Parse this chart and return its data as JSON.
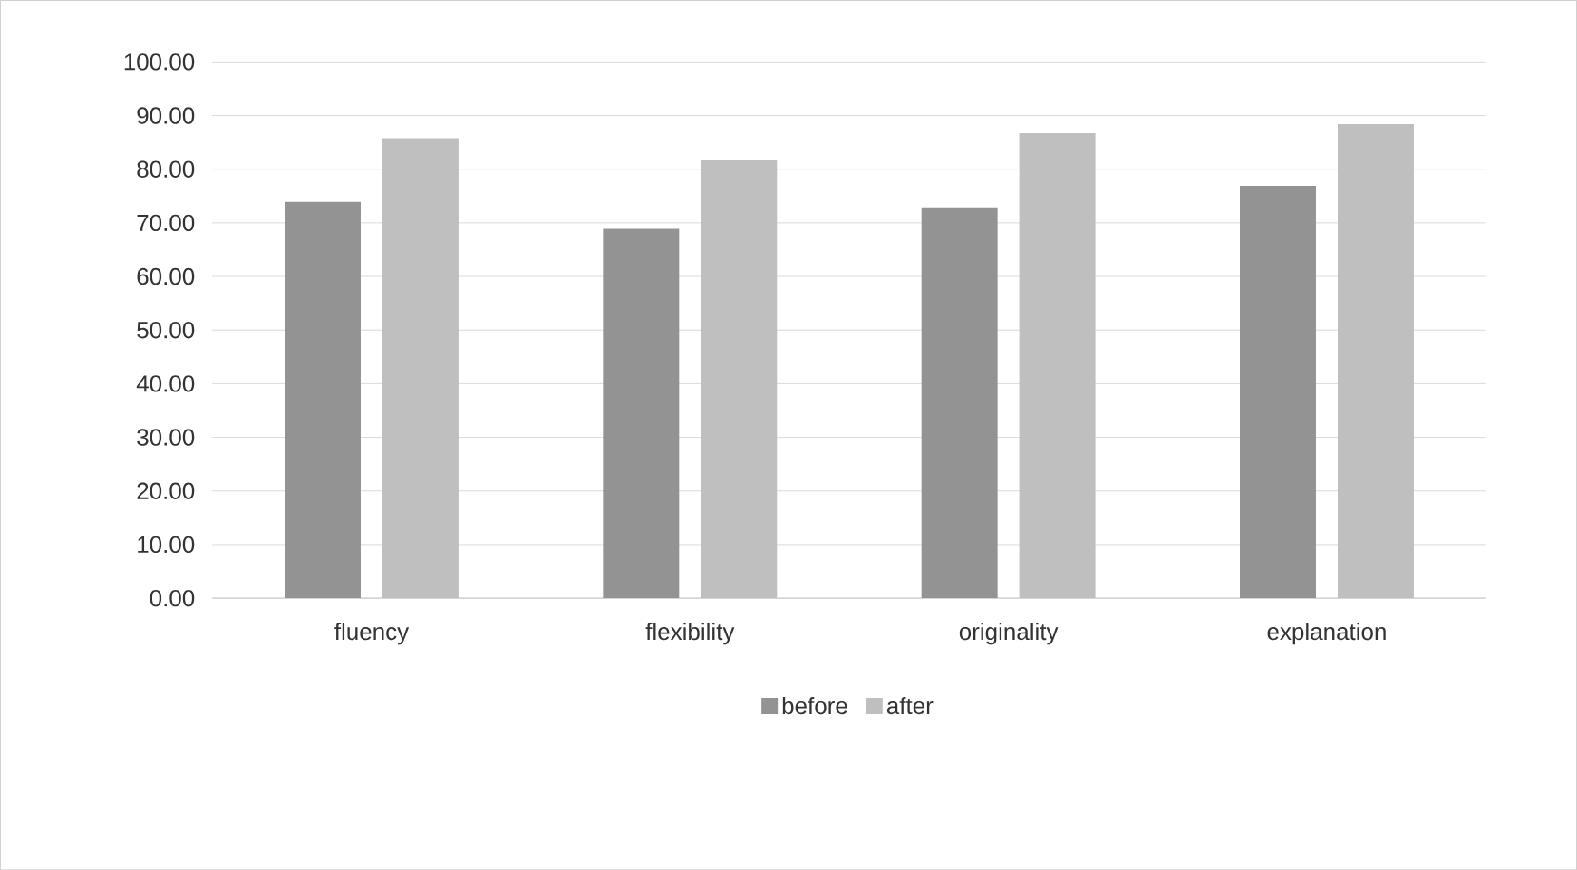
{
  "chart_data": {
    "type": "bar",
    "categories": [
      "fluency",
      "flexibility",
      "originality",
      "explanation"
    ],
    "series": [
      {
        "name": "before",
        "color": "#939393",
        "values": [
          73.9,
          68.9,
          72.9,
          76.9
        ]
      },
      {
        "name": "after",
        "color": "#bfbfbf",
        "values": [
          85.8,
          81.8,
          86.7,
          88.4
        ]
      }
    ],
    "ylim": [
      0,
      100
    ],
    "yticks": [
      {
        "value": 0,
        "label": "0.00"
      },
      {
        "value": 10,
        "label": "10.00"
      },
      {
        "value": 20,
        "label": "20.00"
      },
      {
        "value": 30,
        "label": "30.00"
      },
      {
        "value": 40,
        "label": "40.00"
      },
      {
        "value": 50,
        "label": "50.00"
      },
      {
        "value": 60,
        "label": "60.00"
      },
      {
        "value": 70,
        "label": "70.00"
      },
      {
        "value": 80,
        "label": "80.00"
      },
      {
        "value": 90,
        "label": "90.00"
      },
      {
        "value": 100,
        "label": "100.00"
      }
    ],
    "grid": "y",
    "legend": "bottom"
  }
}
